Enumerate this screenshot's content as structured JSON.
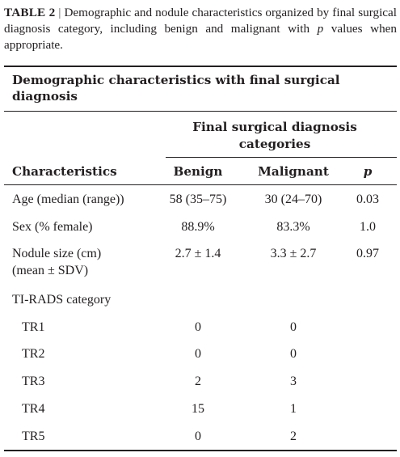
{
  "caption": {
    "label": "TABLE 2",
    "separator": "|",
    "text_before_p": "Demographic and nodule characteristics organized by final surgical diagnosis category, including benign and malignant with",
    "p_symbol": "p",
    "text_after_p": "values when appropriate."
  },
  "table": {
    "section_title": "Demographic characteristics with final surgical diagnosis",
    "group_header": "Final surgical diagnosis categories",
    "columns": [
      "Characteristics",
      "Benign",
      "Malignant",
      "p"
    ],
    "rows": [
      {
        "label": "Age (median (range))",
        "benign": "58 (35–75)",
        "malignant": "30 (24–70)",
        "p": "0.03"
      },
      {
        "label": "Sex (% female)",
        "benign": "88.9%",
        "malignant": "83.3%",
        "p": "1.0"
      },
      {
        "label_line1": "Nodule size (cm)",
        "label_line2": "(mean ± SDV)",
        "benign": "2.7 ± 1.4",
        "malignant": "3.3 ± 2.7",
        "p": "0.97"
      },
      {
        "label": "TI-RADS category",
        "benign": "",
        "malignant": "",
        "p": ""
      },
      {
        "label": "TR1",
        "benign": "0",
        "malignant": "0",
        "p": ""
      },
      {
        "label": "TR2",
        "benign": "0",
        "malignant": "0",
        "p": ""
      },
      {
        "label": "TR3",
        "benign": "2",
        "malignant": "3",
        "p": ""
      },
      {
        "label": "TR4",
        "benign": "15",
        "malignant": "1",
        "p": ""
      },
      {
        "label": "TR5",
        "benign": "0",
        "malignant": "2",
        "p": ""
      }
    ]
  }
}
